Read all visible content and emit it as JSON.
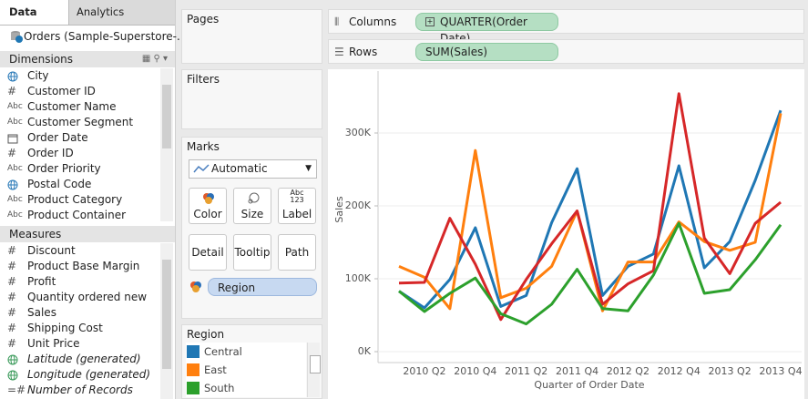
{
  "data_pane": {
    "tabs": [
      "Data",
      "Analytics"
    ],
    "source": "Orders (Sample-Superstore-...",
    "dimensions_title": "Dimensions",
    "dimensions": [
      {
        "label": "City"
      },
      {
        "icon": "#",
        "label": "Customer ID"
      },
      {
        "icon": "Abc",
        "label": "Customer Name"
      },
      {
        "icon": "Abc",
        "label": "Customer Segment"
      },
      {
        "label": "Order Date"
      },
      {
        "icon": "#",
        "label": "Order ID"
      },
      {
        "icon": "Abc",
        "label": "Order Priority"
      },
      {
        "label": "Postal Code"
      },
      {
        "icon": "Abc",
        "label": "Product Category"
      },
      {
        "icon": "Abc",
        "label": "Product Container"
      }
    ],
    "measures_title": "Measures",
    "measures": [
      {
        "icon": "#",
        "label": "Discount"
      },
      {
        "icon": "#",
        "label": "Product Base Margin"
      },
      {
        "icon": "#",
        "label": "Profit"
      },
      {
        "icon": "#",
        "label": "Quantity ordered new"
      },
      {
        "icon": "#",
        "label": "Sales"
      },
      {
        "icon": "#",
        "label": "Shipping Cost"
      },
      {
        "icon": "#",
        "label": "Unit Price"
      },
      {
        "label": "Latitude (generated)"
      },
      {
        "label": "Longitude (generated)"
      },
      {
        "icon": "=#",
        "label": "Number of Records"
      }
    ]
  },
  "cards": {
    "pages": "Pages",
    "filters": "Filters",
    "marks": {
      "title": "Marks",
      "mark_type": "Automatic",
      "buttons": [
        "Color",
        "Size",
        "Label",
        "Detail",
        "Tooltip",
        "Path"
      ],
      "label_icon": [
        "Abc",
        "123"
      ],
      "pill": "Region"
    },
    "legend_title": "Region"
  },
  "shelves": {
    "columns": {
      "label": "Columns",
      "pill": "QUARTER(Order Date)"
    },
    "rows": {
      "label": "Rows",
      "pill": "SUM(Sales)"
    }
  },
  "chart_data": {
    "type": "line",
    "x_label": "Quarter of Order Date",
    "y_label": "Sales",
    "categories": [
      null,
      "2010 Q2",
      null,
      "2010 Q4",
      null,
      "2011 Q2",
      null,
      "2011 Q4",
      null,
      "2012 Q2",
      null,
      "2012 Q4",
      null,
      "2013 Q2",
      null,
      "2013 Q4"
    ],
    "series": [
      {
        "name": "Central",
        "color": "#1f77b4",
        "values": [
          83000,
          60000,
          99000,
          170000,
          62000,
          77000,
          177000,
          251000,
          77000,
          117000,
          134000,
          255000,
          115000,
          151000,
          235000,
          331000
        ]
      },
      {
        "name": "East",
        "color": "#ff7f0e",
        "values": [
          117000,
          102000,
          59000,
          276000,
          74000,
          87000,
          117000,
          193000,
          56000,
          123000,
          123000,
          178000,
          151000,
          139000,
          150000,
          327000
        ]
      },
      {
        "color": "#d62728",
        "values": [
          94000,
          95000,
          183000,
          120000,
          44000,
          99000,
          148000,
          193000,
          65000,
          93000,
          111000,
          354000,
          156000,
          107000,
          176000,
          205000
        ]
      },
      {
        "name": "South",
        "color": "#2ca02c",
        "values": [
          83000,
          55000,
          80000,
          101000,
          52000,
          38000,
          65000,
          113000,
          59000,
          56000,
          105000,
          176000,
          80000,
          85000,
          126000,
          174000
        ]
      }
    ],
    "ylim": [
      -15000,
      385000
    ],
    "yticks": [
      {
        "value": 0,
        "label": "0K"
      },
      {
        "value": 100000,
        "label": "100K"
      },
      {
        "value": 200000,
        "label": "200K"
      },
      {
        "value": 300000,
        "label": "300K"
      }
    ],
    "grid": true
  }
}
